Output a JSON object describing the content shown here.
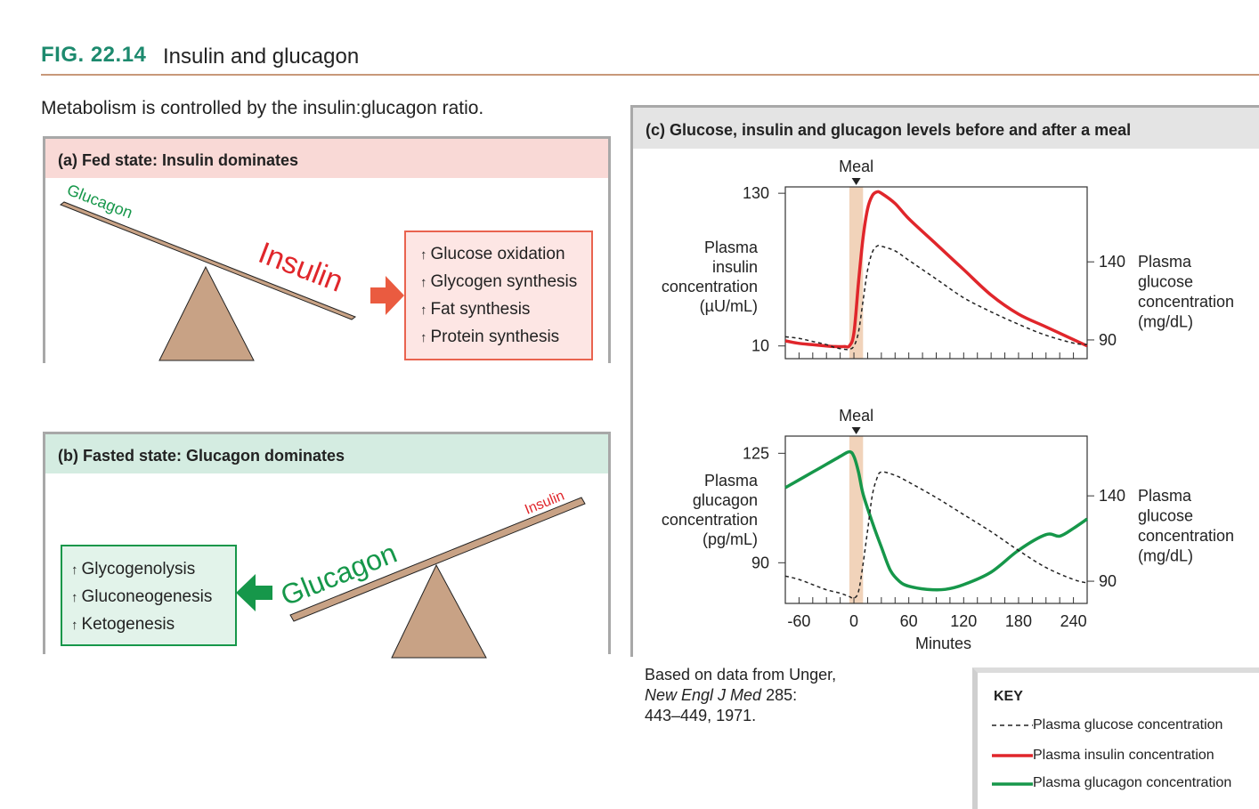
{
  "header": {
    "fig_number": "FIG. 22.14",
    "fig_title": "Insulin and glucagon",
    "subtitle": "Metabolism is controlled by the insulin:glucagon ratio."
  },
  "panel_a": {
    "title": "(a) Fed state: Insulin dominates",
    "light_label": "Glucagon",
    "heavy_label": "Insulin",
    "effects": [
      "Glucose oxidation",
      "Glycogen synthesis",
      "Fat synthesis",
      "Protein synthesis"
    ],
    "colors": {
      "header_bg": "#f9d9d6",
      "box_bg": "#fde6e4",
      "box_border": "#e9634f",
      "arrow": "#ea5b40",
      "insulin": "#e0262b",
      "glucagon": "#16974a"
    }
  },
  "panel_b": {
    "title": "(b) Fasted state: Glucagon dominates",
    "light_label": "Insulin",
    "heavy_label": "Glucagon",
    "effects": [
      "Glycogenolysis",
      "Gluconeogenesis",
      "Ketogenesis"
    ],
    "colors": {
      "header_bg": "#d4ece1",
      "box_bg": "#e2f3ea",
      "box_border": "#16974a",
      "arrow": "#16974a"
    }
  },
  "panel_c": {
    "title": "(c) Glucose, insulin and glucagon levels before and after a meal",
    "citation": {
      "line1": "Based on data from Unger,",
      "journal": "New Engl J Med",
      "line2_rest": " 285:",
      "line3": "443–449, 1971."
    },
    "key": {
      "title": "KEY",
      "items": [
        "Plasma glucose concentration",
        "Plasma insulin concentration",
        "Plasma glucagon concentration"
      ]
    }
  },
  "chart_data": [
    {
      "type": "line",
      "annotation": "Meal",
      "meal_window": [
        -5,
        10
      ],
      "xlim": [
        -75,
        255
      ],
      "left_axis": {
        "label": [
          "Plasma",
          "insulin",
          "concentration",
          "(µU/mL)"
        ],
        "ticks": [
          130,
          10
        ],
        "ylim": [
          0,
          135
        ]
      },
      "right_axis": {
        "label": [
          "Plasma",
          "glucose",
          "concentration",
          "(mg/dL)"
        ],
        "ticks": [
          140,
          90
        ],
        "ylim": [
          78,
          188
        ]
      },
      "series": [
        {
          "name": "Plasma insulin concentration",
          "color": "#e0262b",
          "style": "solid",
          "axis": "left",
          "x": [
            -75,
            -60,
            -45,
            -30,
            -20,
            -10,
            -5,
            0,
            5,
            10,
            15,
            20,
            25,
            30,
            45,
            60,
            90,
            120,
            150,
            180,
            210,
            240,
            255
          ],
          "y": [
            14,
            12,
            11,
            10,
            9.5,
            9.5,
            10,
            20,
            60,
            95,
            118,
            128,
            131,
            130,
            122,
            110,
            90,
            70,
            50,
            35,
            25,
            15,
            10
          ]
        },
        {
          "name": "Plasma glucose concentration",
          "color": "#222222",
          "style": "dashed",
          "axis": "right",
          "x": [
            -75,
            -60,
            -45,
            -30,
            -20,
            -10,
            -5,
            0,
            5,
            10,
            15,
            20,
            25,
            30,
            45,
            60,
            90,
            120,
            150,
            180,
            210,
            240,
            255
          ],
          "y": [
            92,
            91,
            89,
            87,
            85,
            84,
            84,
            86,
            95,
            115,
            135,
            146,
            150,
            150,
            147,
            141,
            129,
            117,
            108,
            100,
            93,
            88,
            87
          ]
        }
      ]
    },
    {
      "type": "line",
      "annotation": "Meal",
      "meal_window": [
        -5,
        10
      ],
      "xlim": [
        -75,
        255
      ],
      "xticks": [
        -60,
        0,
        60,
        120,
        180,
        240
      ],
      "xlabel": "Minutes",
      "left_axis": {
        "label": [
          "Plasma",
          "glucagon",
          "concentration",
          "(pg/mL)"
        ],
        "ticks": [
          125,
          90
        ],
        "ylim": [
          77,
          130.5
        ]
      },
      "right_axis": {
        "label": [
          "Plasma",
          "glucose",
          "concentration",
          "(mg/dL)"
        ],
        "ticks": [
          140,
          90
        ],
        "ylim": [
          77,
          175
        ]
      },
      "series": [
        {
          "name": "Plasma glucagon concentration",
          "color": "#16974a",
          "style": "solid",
          "axis": "left",
          "x": [
            -75,
            -60,
            -45,
            -30,
            -15,
            -5,
            0,
            5,
            10,
            20,
            30,
            40,
            50,
            60,
            80,
            100,
            120,
            150,
            180,
            210,
            225,
            240,
            255
          ],
          "y": [
            114,
            116.5,
            119,
            121.5,
            124,
            125.5,
            124,
            119,
            112,
            103,
            95,
            87.5,
            84,
            82.5,
            81.5,
            81.5,
            83,
            87,
            94,
            99,
            98.5,
            101,
            104
          ]
        },
        {
          "name": "Plasma glucose concentration",
          "color": "#222222",
          "style": "dashed",
          "axis": "right",
          "x": [
            -75,
            -60,
            -45,
            -30,
            -15,
            -5,
            0,
            5,
            10,
            15,
            20,
            25,
            30,
            45,
            60,
            90,
            120,
            150,
            180,
            210,
            240,
            255
          ],
          "y": [
            93,
            91,
            88,
            85,
            83,
            81,
            80,
            84,
            100,
            120,
            140,
            150,
            154,
            152,
            148,
            139,
            129,
            119,
            108,
            98,
            91,
            89
          ]
        }
      ]
    }
  ]
}
